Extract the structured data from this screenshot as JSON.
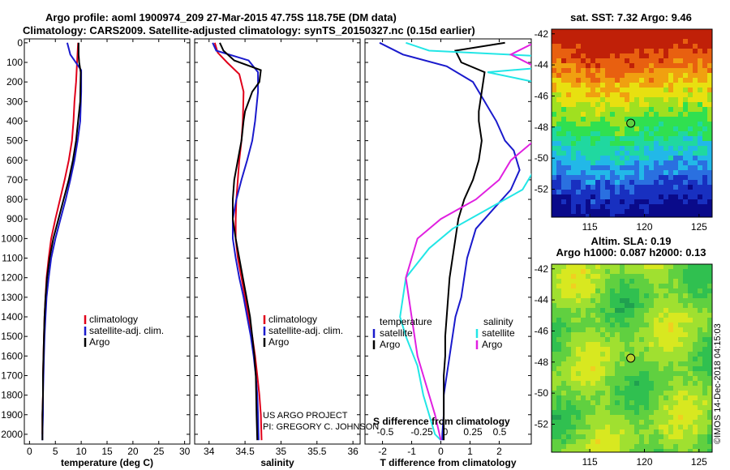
{
  "header": {
    "line1": "Argo profile: aoml 1900974_209 27-Mar-2015 47.75S 118.75E (DM data)",
    "line2": "Climatology: CARS2009. Satellite-adjusted climatology: synTS_20150327.nc (0.15d earlier)"
  },
  "colors": {
    "climatology": "#e0001a",
    "satellite": "#1a1acc",
    "argo": "#000000",
    "sat_salinity": "#22e6e6",
    "argo_salinity": "#e020e0"
  },
  "yaxis": {
    "ticks": [
      "0",
      "100",
      "200",
      "300",
      "400",
      "500",
      "600",
      "700",
      "800",
      "900",
      "1000",
      "1100",
      "1200",
      "1300",
      "1400",
      "1500",
      "1600",
      "1700",
      "1800",
      "1900",
      "2000"
    ]
  },
  "watermark": {
    "project": "US ARGO PROJECT",
    "pi": "PI: GREGORY C. JOHNSON"
  },
  "credit": "©IMOS 14-Dec-2018 04:15:03",
  "map_top": {
    "title": "sat. SST: 7.32 Argo: 9.46",
    "yticks": [
      "-42",
      "-44",
      "-46",
      "-48",
      "-50",
      "-52"
    ],
    "xticks": [
      "115",
      "120",
      "125"
    ]
  },
  "map_bottom": {
    "title1": "Altim. SLA: 0.19",
    "title2": "Argo h1000: 0.087 h2000: 0.13",
    "yticks": [
      "-42",
      "-44",
      "-46",
      "-48",
      "-50",
      "-52"
    ],
    "xticks": [
      "115",
      "120",
      "125"
    ]
  },
  "chart_data": [
    {
      "type": "line",
      "xlabel": "temperature (deg C)",
      "xlim": [
        -1,
        31
      ],
      "ylim": [
        2050,
        -20
      ],
      "xticks": [
        "0",
        "5",
        "10",
        "15",
        "20",
        "25",
        "30"
      ],
      "legend": [
        "climatology",
        "satellite-adj. clim.",
        "Argo"
      ],
      "series": [
        {
          "name": "climatology",
          "x": [
            9.4,
            9.2,
            9.0,
            8.7,
            8.5,
            8.2,
            7.6,
            6.8,
            5.9,
            5.0,
            4.2,
            3.7,
            3.3,
            3.1,
            2.9,
            2.8,
            2.7,
            2.6,
            2.6,
            2.5,
            2.5
          ],
          "y": [
            0,
            100,
            200,
            300,
            400,
            500,
            600,
            700,
            800,
            900,
            1000,
            1100,
            1200,
            1300,
            1400,
            1500,
            1600,
            1700,
            1800,
            1900,
            2000
          ]
        },
        {
          "name": "satellite-adj. clim.",
          "x": [
            7.3,
            7.9,
            10.0,
            10.0,
            9.8,
            9.3,
            8.7,
            7.9,
            7.0,
            6.0,
            5.0,
            4.2,
            3.7,
            3.3,
            3.1,
            2.9,
            2.8,
            2.7,
            2.6,
            2.6,
            2.5,
            2.5
          ],
          "y": [
            0,
            60,
            140,
            250,
            400,
            500,
            600,
            700,
            800,
            900,
            1000,
            1100,
            1200,
            1300,
            1400,
            1500,
            1600,
            1700,
            1800,
            1900,
            2000,
            2030
          ]
        },
        {
          "name": "Argo",
          "x": [
            9.5,
            9.5,
            9.6,
            9.9,
            9.8,
            9.4,
            9.0,
            8.4,
            7.6,
            6.6,
            5.6,
            4.6,
            3.9,
            3.4,
            3.1,
            2.9,
            2.8,
            2.7,
            2.6,
            2.6,
            2.5,
            2.5
          ],
          "y": [
            0,
            60,
            100,
            150,
            300,
            400,
            500,
            600,
            700,
            800,
            900,
            1000,
            1100,
            1200,
            1300,
            1400,
            1500,
            1600,
            1700,
            1800,
            1900,
            2030
          ]
        }
      ]
    },
    {
      "type": "line",
      "xlabel": "salinity",
      "xlim": [
        33.8,
        36.1
      ],
      "ylim": [
        2050,
        -20
      ],
      "xticks": [
        "34",
        "34.5",
        "35",
        "35.5",
        "36"
      ],
      "legend": [
        "climatology",
        "satellite-adj. clim.",
        "Argo"
      ],
      "series": [
        {
          "name": "climatology",
          "x": [
            34.08,
            34.12,
            34.25,
            34.42,
            34.48,
            34.47,
            34.45,
            34.42,
            34.4,
            34.38,
            34.37,
            34.37,
            34.4,
            34.45,
            34.5,
            34.55,
            34.6,
            34.64,
            34.67,
            34.7,
            34.72,
            34.73
          ],
          "y": [
            0,
            50,
            100,
            160,
            250,
            400,
            500,
            600,
            700,
            800,
            900,
            1000,
            1100,
            1200,
            1300,
            1400,
            1500,
            1600,
            1700,
            1800,
            1900,
            2030
          ]
        },
        {
          "name": "satellite-adj. clim.",
          "x": [
            34.05,
            34.1,
            34.55,
            34.68,
            34.68,
            34.64,
            34.6,
            34.53,
            34.45,
            34.38,
            34.33,
            34.33,
            34.37,
            34.42,
            34.48,
            34.53,
            34.58,
            34.62,
            34.65,
            34.67,
            34.68,
            34.69
          ],
          "y": [
            0,
            40,
            90,
            150,
            250,
            400,
            500,
            600,
            700,
            800,
            900,
            1000,
            1100,
            1200,
            1300,
            1400,
            1500,
            1600,
            1700,
            1800,
            1900,
            2030
          ]
        },
        {
          "name": "Argo",
          "x": [
            34.15,
            34.2,
            34.35,
            34.72,
            34.7,
            34.6,
            34.5,
            34.48,
            34.45,
            34.4,
            34.35,
            34.33,
            34.33,
            34.37,
            34.42,
            34.47,
            34.52,
            34.57,
            34.6,
            34.63,
            34.65,
            34.66,
            34.67
          ],
          "y": [
            0,
            40,
            90,
            140,
            200,
            250,
            350,
            400,
            500,
            600,
            700,
            800,
            900,
            1000,
            1100,
            1200,
            1300,
            1400,
            1500,
            1600,
            1700,
            1900,
            2030
          ]
        }
      ]
    },
    {
      "type": "line",
      "xlabel": "T difference from climatology",
      "xlabel2": "S difference from climatology",
      "xlim": [
        -2.6,
        3.1
      ],
      "ylim": [
        2050,
        -20
      ],
      "xticks": [
        "-2",
        "-1",
        "0",
        "1",
        "2"
      ],
      "xticks2": [
        "-0.5",
        "-0.25",
        "0",
        "0.25",
        "0.5"
      ],
      "legend_left_title": "temperature",
      "legend_right_title": "salinity",
      "legend_left": [
        "satellite",
        "Argo"
      ],
      "legend_right": [
        "satellite",
        "Argo"
      ],
      "series": [
        {
          "name": "satellite",
          "x": [
            -2.1,
            -1.3,
            0.2,
            1.1,
            1.5,
            1.9,
            2.2,
            2.5,
            2.7,
            2.4,
            1.8,
            1.2,
            0.9,
            0.7,
            0.5,
            0.4,
            0.3,
            0.2,
            0.1,
            0.1,
            0.05,
            0.05
          ],
          "y": [
            0,
            60,
            120,
            200,
            300,
            400,
            500,
            550,
            650,
            750,
            850,
            950,
            1100,
            1300,
            1400,
            1500,
            1600,
            1700,
            1800,
            1900,
            2000,
            2030
          ]
        },
        {
          "name": "Argo",
          "x": [
            2.2,
            0.5,
            0.7,
            1.5,
            1.4,
            1.3,
            1.3,
            1.4,
            1.3,
            1.1,
            0.8,
            0.6,
            0.5,
            0.4,
            0.3,
            0.25,
            0.2,
            0.15,
            0.15,
            0.1,
            0.1,
            0.1
          ],
          "y": [
            0,
            40,
            100,
            150,
            250,
            350,
            400,
            500,
            600,
            700,
            800,
            900,
            1000,
            1100,
            1200,
            1300,
            1400,
            1500,
            1600,
            1700,
            1900,
            2030
          ]
        },
        {
          "name": "satellite",
          "x": [
            -0.3,
            -0.1,
            1.6,
            0.4,
            1.2,
            0.9,
            0.9,
            0.8,
            0.7,
            0.4,
            0.1,
            -0.1,
            -0.3,
            -0.35,
            -0.3,
            -0.2,
            -0.15,
            -0.1,
            -0.05,
            0.0
          ],
          "y": [
            0,
            40,
            90,
            150,
            250,
            400,
            550,
            650,
            750,
            850,
            950,
            1050,
            1200,
            1400,
            1500,
            1650,
            1800,
            1900,
            2000,
            2030
          ]
        },
        {
          "name": "Argo",
          "x": [
            0.8,
            0.6,
            0.9,
            1.0,
            0.8,
            0.6,
            0.5,
            0.3,
            0.0,
            -0.2,
            -0.3,
            -0.25,
            -0.2,
            -0.15,
            -0.1,
            -0.05,
            0.0
          ],
          "y": [
            0,
            60,
            150,
            300,
            500,
            600,
            700,
            800,
            900,
            1000,
            1200,
            1400,
            1600,
            1700,
            1800,
            1900,
            2030
          ]
        }
      ]
    }
  ]
}
